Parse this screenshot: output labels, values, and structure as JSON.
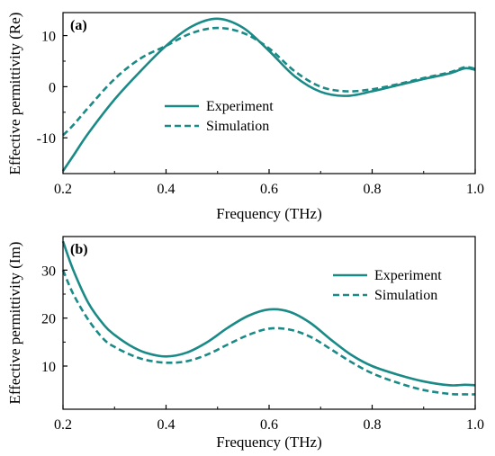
{
  "chart_data": [
    {
      "type": "line",
      "panel_label": "(a)",
      "xlabel": "Frequency (THz)",
      "ylabel": "Effective permittivity (Re)",
      "xlim": [
        0.2,
        1.0
      ],
      "ylim": [
        -17,
        14.5
      ],
      "xticks": [
        0.2,
        0.4,
        0.6,
        0.8,
        1.0
      ],
      "xtick_labels": [
        "0.2",
        "0.4",
        "0.6",
        "0.8",
        "1.0"
      ],
      "yticks": [
        -10,
        0,
        10
      ],
      "ytick_labels": [
        "-10",
        "0",
        "10"
      ],
      "grid": false,
      "legend": "upper-center",
      "color": "#1a8a87",
      "series": [
        {
          "name": "Experiment",
          "style": "solid",
          "x": [
            0.2,
            0.22,
            0.25,
            0.3,
            0.35,
            0.4,
            0.45,
            0.5,
            0.55,
            0.6,
            0.65,
            0.7,
            0.75,
            0.8,
            0.85,
            0.9,
            0.95,
            0.98,
            1.0
          ],
          "y": [
            -16.5,
            -13.5,
            -9,
            -2.5,
            3,
            8,
            11.8,
            13.3,
            11.5,
            7,
            2,
            -1,
            -1.8,
            -0.9,
            0.3,
            1.5,
            2.6,
            3.6,
            3.3
          ]
        },
        {
          "name": "Simulation",
          "style": "dashed",
          "x": [
            0.2,
            0.22,
            0.25,
            0.3,
            0.35,
            0.4,
            0.45,
            0.5,
            0.55,
            0.6,
            0.65,
            0.7,
            0.75,
            0.8,
            0.85,
            0.9,
            0.95,
            0.98,
            1.0
          ],
          "y": [
            -9.5,
            -7.5,
            -4,
            1.5,
            5.5,
            8,
            10.5,
            11.5,
            10.5,
            7.5,
            3,
            0,
            -0.9,
            -0.5,
            0.5,
            1.7,
            2.8,
            3.8,
            3.5
          ]
        }
      ]
    },
    {
      "type": "line",
      "panel_label": "(b)",
      "xlabel": "Frequency (THz)",
      "ylabel": "Effective permittivity (Im)",
      "xlim": [
        0.2,
        1.0
      ],
      "ylim": [
        1,
        37
      ],
      "xticks": [
        0.2,
        0.4,
        0.6,
        0.8,
        1.0
      ],
      "xtick_labels": [
        "0.2",
        "0.4",
        "0.6",
        "0.8",
        "1.0"
      ],
      "yticks": [
        10,
        20,
        30
      ],
      "ytick_labels": [
        "10",
        "20",
        "30"
      ],
      "grid": false,
      "legend": "upper-right",
      "color": "#1a8a87",
      "series": [
        {
          "name": "Experiment",
          "style": "solid",
          "x": [
            0.2,
            0.22,
            0.25,
            0.28,
            0.3,
            0.33,
            0.36,
            0.4,
            0.44,
            0.48,
            0.52,
            0.56,
            0.6,
            0.64,
            0.68,
            0.72,
            0.76,
            0.8,
            0.85,
            0.9,
            0.95,
            0.98,
            1.0
          ],
          "y": [
            36,
            30,
            23,
            18.5,
            16.5,
            14.3,
            12.8,
            12,
            12.8,
            15,
            18,
            20.5,
            21.8,
            21.3,
            19,
            15.5,
            12.3,
            10,
            8.2,
            6.8,
            6,
            6.1,
            6
          ]
        },
        {
          "name": "Simulation",
          "style": "dashed",
          "x": [
            0.2,
            0.22,
            0.25,
            0.28,
            0.3,
            0.33,
            0.36,
            0.4,
            0.44,
            0.48,
            0.52,
            0.56,
            0.6,
            0.64,
            0.68,
            0.72,
            0.76,
            0.8,
            0.85,
            0.9,
            0.95,
            0.98,
            1.0
          ],
          "y": [
            30,
            25,
            19.5,
            15.5,
            14,
            12.4,
            11.3,
            10.7,
            11,
            12.4,
            14.5,
            16.5,
            17.8,
            17.6,
            16.1,
            13.5,
            10.8,
            8.5,
            6.5,
            5,
            4.2,
            4.1,
            4.1
          ]
        }
      ]
    }
  ]
}
